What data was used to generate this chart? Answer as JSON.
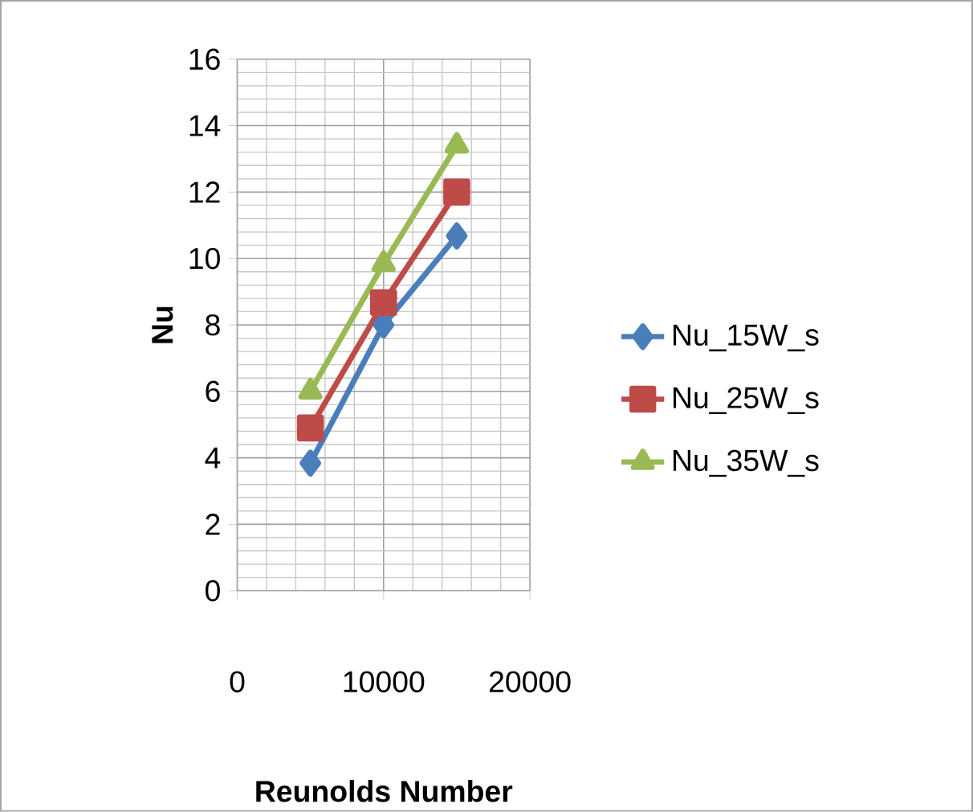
{
  "chart_data": {
    "type": "line",
    "xlabel": "Reunolds Number",
    "ylabel": "Nu",
    "xlim": [
      0,
      20000
    ],
    "xticks": [
      0,
      10000,
      20000
    ],
    "ylim": [
      0,
      16
    ],
    "yticks": [
      0,
      2,
      4,
      6,
      8,
      10,
      12,
      14,
      16
    ],
    "grid": true,
    "legend": "right",
    "line_style": "solid",
    "series": [
      {
        "name": "Nu_15W_s",
        "color": "#4a7ebb",
        "marker": "diamond",
        "x": [
          5000,
          10000,
          15000
        ],
        "values": [
          3.84,
          8.0,
          10.68
        ]
      },
      {
        "name": "Nu_25W_s",
        "color": "#be4b48",
        "marker": "square",
        "x": [
          5000,
          10000,
          15000
        ],
        "values": [
          4.9,
          8.67,
          12.0
        ]
      },
      {
        "name": "Nu_35W_s",
        "color": "#98b954",
        "marker": "triangle",
        "x": [
          5000,
          10000,
          15000
        ],
        "values": [
          6.0,
          9.84,
          13.4
        ]
      }
    ]
  }
}
